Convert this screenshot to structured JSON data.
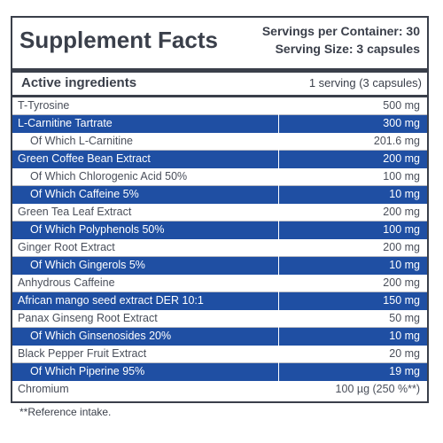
{
  "header": {
    "title": "Supplement Facts",
    "servings_per_container": "Servings per Container: 30",
    "serving_size": "Serving Size: 3 capsules"
  },
  "columns": {
    "ingredients_label": "Active ingredients",
    "serving_label": "1 serving (3 capsules)"
  },
  "rows": [
    {
      "name": "T-Tyrosine",
      "amount": "500 mg"
    },
    {
      "name": "L-Carnitine Tartrate",
      "amount": "300 mg"
    },
    {
      "name": "Of Which L-Carnitine",
      "amount": "201.6 mg"
    },
    {
      "name": "Green Coffee Bean Extract",
      "amount": "200 mg"
    },
    {
      "name": "Of Which Chlorogenic Acid 50%",
      "amount": "100 mg"
    },
    {
      "name": "Of Which Caffeine 5%",
      "amount": "10 mg"
    },
    {
      "name": "Green Tea Leaf Extract",
      "amount": "200 mg"
    },
    {
      "name": "Of Which Polyphenols 50%",
      "amount": "100 mg"
    },
    {
      "name": "Ginger Root Extract",
      "amount": "200 mg"
    },
    {
      "name": "Of Which Gingerols 5%",
      "amount": "10 mg"
    },
    {
      "name": "Anhydrous Caffeine",
      "amount": "200 mg"
    },
    {
      "name": "African mango seed extract DER 10:1",
      "amount": "150 mg"
    },
    {
      "name": "Panax Ginseng Root Extract",
      "amount": "50 mg"
    },
    {
      "name": "Of Which Ginsenosides 20%",
      "amount": "10 mg"
    },
    {
      "name": "Black Pepper Fruit Extract",
      "amount": "20 mg"
    },
    {
      "name": "Of Which Piperine 95%",
      "amount": "19 mg"
    },
    {
      "name": "Chromium",
      "amount": "100 µg (250 %**)"
    }
  ],
  "footnote": "**Reference intake.",
  "colors": {
    "highlight_row": "#1f4fa3",
    "text_dark": "#3a3f4a"
  }
}
